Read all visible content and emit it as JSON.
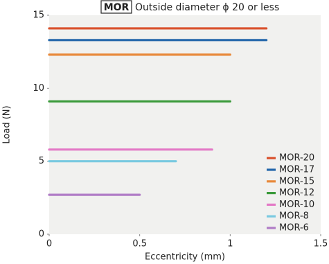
{
  "chart_data": {
    "type": "line",
    "title_badge": "MOR",
    "title": "Outside diameter ϕ 20 or less",
    "x_label": "Eccentricity (mm)",
    "y_label": "Load (N)",
    "xlim": [
      0,
      1.5
    ],
    "xticks": [
      0,
      0.5,
      1,
      1.5
    ],
    "ylim": [
      0,
      15
    ],
    "yticks": [
      0,
      5,
      10,
      15
    ],
    "legend": "lower right",
    "series": [
      {
        "name": "MOR-20",
        "color": "#d9512c",
        "x": [
          0,
          1.2
        ],
        "values": [
          14.1,
          14.1
        ]
      },
      {
        "name": "MOR-17",
        "color": "#2266aa",
        "x": [
          0,
          1.2
        ],
        "values": [
          13.3,
          13.3
        ]
      },
      {
        "name": "MOR-15",
        "color": "#e8893a",
        "x": [
          0,
          1.0
        ],
        "values": [
          12.3,
          12.3
        ]
      },
      {
        "name": "MOR-12",
        "color": "#3a9a3a",
        "x": [
          0,
          1.0
        ],
        "values": [
          9.1,
          9.1
        ]
      },
      {
        "name": "MOR-10",
        "color": "#e37ac6",
        "x": [
          0,
          0.9
        ],
        "values": [
          5.8,
          5.8
        ]
      },
      {
        "name": "MOR-8",
        "color": "#79c9e0",
        "x": [
          0,
          0.7
        ],
        "values": [
          5.0,
          5.0
        ]
      },
      {
        "name": "MOR-6",
        "color": "#b07cc6",
        "x": [
          0,
          0.5
        ],
        "values": [
          2.7,
          2.7
        ]
      }
    ]
  }
}
